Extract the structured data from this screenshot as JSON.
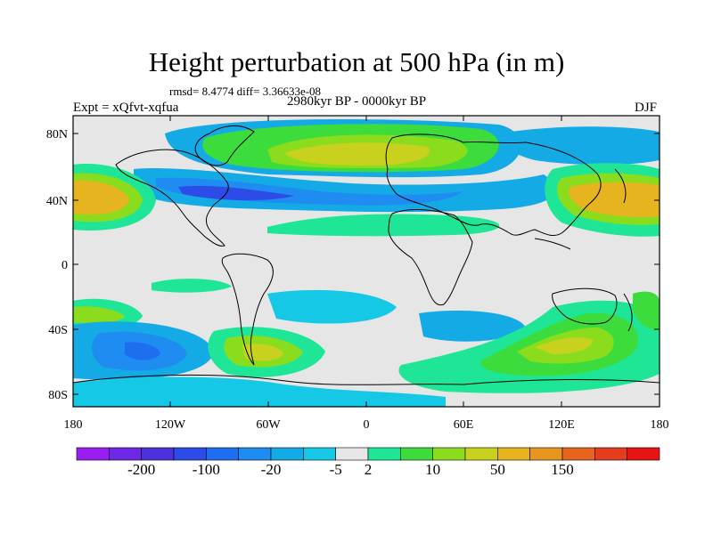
{
  "title": "Height perturbation at 500 hPa (in m)",
  "stats": "rmsd= 8.4774 diff= 3.36633e-08",
  "expt": "Expt = xQfvt-xqfua",
  "period": "2980kyr BP - 0000kyr BP",
  "season": "DJF",
  "lat_labels": [
    "80N",
    "40N",
    "0",
    "40S",
    "80S"
  ],
  "lon_labels": [
    "180",
    "120W",
    "60W",
    "0",
    "60E",
    "120E",
    "180"
  ],
  "colorbar": {
    "labels": [
      "-200",
      "-100",
      "-20",
      "-5",
      "2",
      "10",
      "50",
      "150"
    ],
    "colors": [
      "#9a1ef0",
      "#6e28e6",
      "#4b32dc",
      "#2d4be6",
      "#1e6ef0",
      "#1e8cf0",
      "#14aae6",
      "#14c8e6",
      "#e6e6e6",
      "#1ee696",
      "#3cdc3c",
      "#8cdc1e",
      "#c8d21e",
      "#e6b41e",
      "#e6961e",
      "#e6641e",
      "#e63c1e",
      "#e61414"
    ]
  },
  "icons": [
    "land-outline"
  ]
}
